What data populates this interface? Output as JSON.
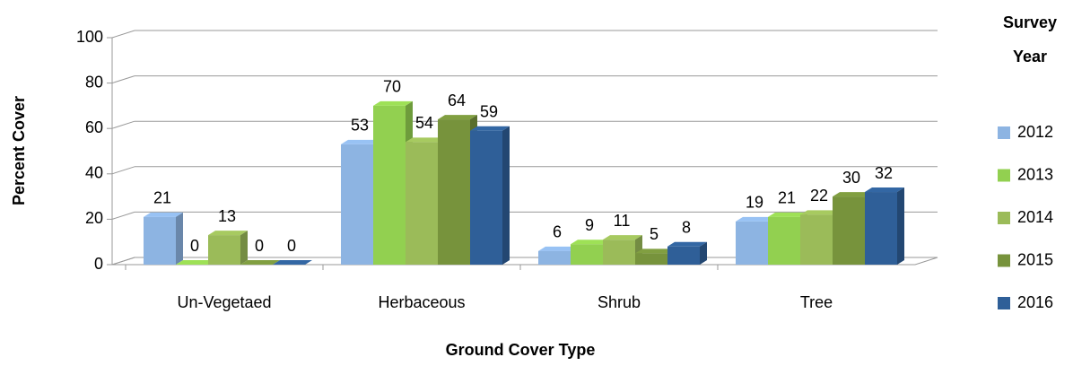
{
  "chart_data": {
    "type": "bar",
    "x_label": "Ground Cover Type",
    "y_label": "Percent Cover",
    "legend_title": "Survey Year",
    "categories": [
      "Un-Vegetaed",
      "Herbaceous",
      "Shrub",
      "Tree"
    ],
    "series": [
      {
        "name": "2012",
        "color": "#8db4e2",
        "values": [
          21,
          53,
          6,
          19
        ]
      },
      {
        "name": "2013",
        "color": "#92d050",
        "values": [
          0,
          70,
          9,
          21
        ]
      },
      {
        "name": "2014",
        "color": "#9bbb59",
        "values": [
          13,
          54,
          11,
          22
        ]
      },
      {
        "name": "2015",
        "color": "#77933c",
        "values": [
          0,
          64,
          5,
          30
        ]
      },
      {
        "name": "2016",
        "color": "#2f5f98",
        "values": [
          0,
          59,
          8,
          32
        ]
      }
    ],
    "ylim": [
      0,
      100
    ],
    "yticks": [
      0,
      20,
      40,
      60,
      80,
      100
    ],
    "grid": true,
    "legend": "right"
  }
}
